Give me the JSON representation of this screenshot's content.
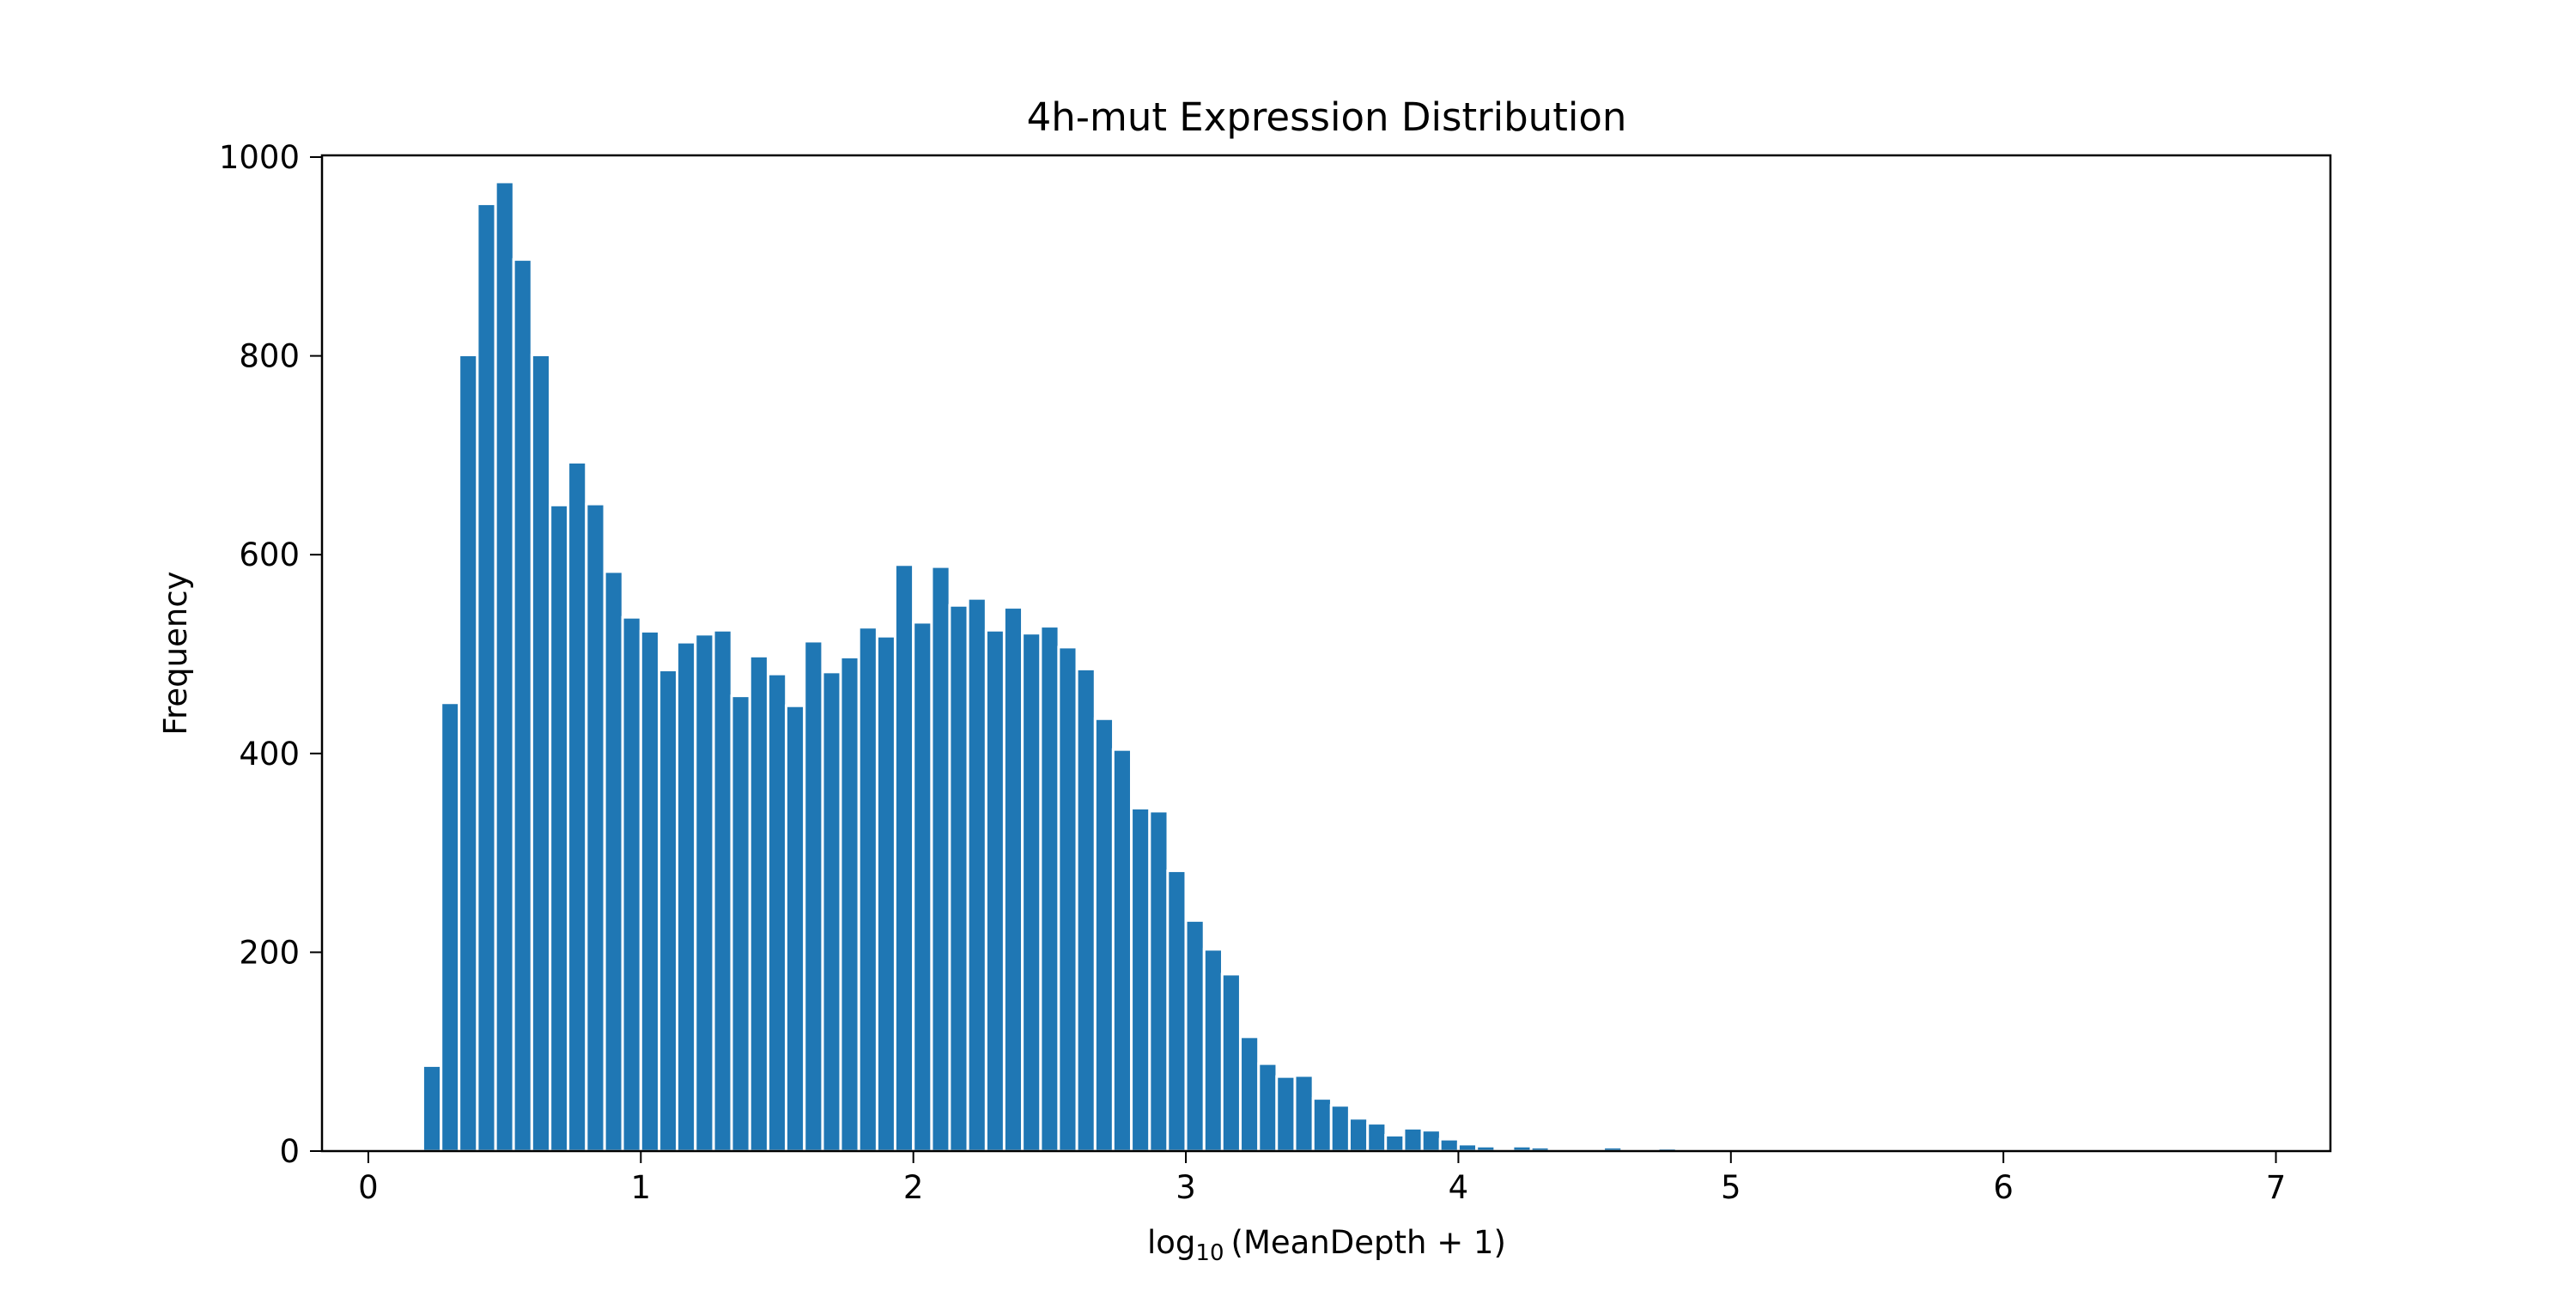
{
  "chart_data": {
    "type": "bar",
    "title": "4h-mut Expression Distribution",
    "xlabel": {
      "prefix": "log",
      "subscript": "10",
      "suffix": "(MeanDepth + 1)"
    },
    "ylabel": "Frequency",
    "xlim": [
      -0.17,
      7.2
    ],
    "ylim": [
      0,
      1000
    ],
    "xticks": [
      "0",
      "1",
      "2",
      "3",
      "4",
      "5",
      "6",
      "7"
    ],
    "yticks": [
      "0",
      "200",
      "400",
      "600",
      "800",
      "1000"
    ],
    "grid": false,
    "legend": "none",
    "bar_color": "#1f77b4",
    "bar_edge_color": "#ffffff",
    "bin_width": 0.0667,
    "x": [
      0.2,
      0.267,
      0.333,
      0.4,
      0.467,
      0.533,
      0.6,
      0.667,
      0.733,
      0.8,
      0.867,
      0.933,
      1.0,
      1.067,
      1.133,
      1.2,
      1.267,
      1.333,
      1.4,
      1.467,
      1.533,
      1.6,
      1.667,
      1.733,
      1.8,
      1.867,
      1.933,
      2.0,
      2.067,
      2.133,
      2.2,
      2.267,
      2.333,
      2.4,
      2.467,
      2.533,
      2.6,
      2.667,
      2.733,
      2.8,
      2.867,
      2.933,
      3.0,
      3.067,
      3.133,
      3.2,
      3.267,
      3.333,
      3.4,
      3.467,
      3.533,
      3.6,
      3.667,
      3.733,
      3.8,
      3.867,
      3.933,
      4.0,
      4.067,
      4.133,
      4.2,
      4.267,
      4.333,
      4.4,
      4.467,
      4.533,
      4.6,
      4.667,
      4.733
    ],
    "values": [
      86,
      451,
      801,
      953,
      975,
      897,
      801,
      650,
      693,
      651,
      583,
      537,
      523,
      484,
      512,
      520,
      524,
      458,
      498,
      480,
      448,
      513,
      482,
      497,
      527,
      518,
      590,
      532,
      588,
      549,
      556,
      524,
      547,
      521,
      528,
      507,
      485,
      435,
      404,
      345,
      342,
      282,
      232,
      203,
      178,
      115,
      88,
      75,
      76,
      53,
      46,
      33,
      28,
      16,
      23,
      21,
      12,
      7,
      5,
      0,
      5,
      4,
      2,
      0,
      0,
      4,
      0,
      0,
      3
    ]
  }
}
